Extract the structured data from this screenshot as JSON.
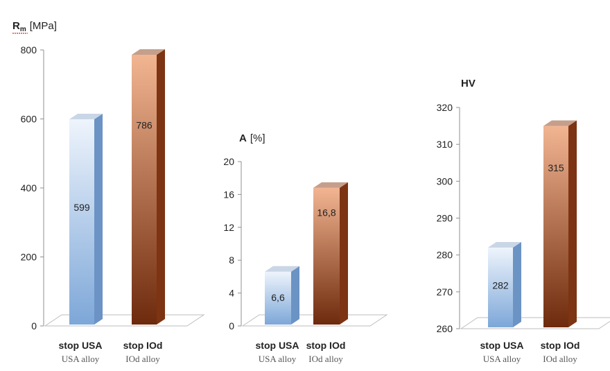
{
  "chart_data": [
    {
      "type": "bar",
      "title": "Rm",
      "title_sub": "m",
      "title_unit": "[MPa]",
      "categories": [
        "stop USA",
        "stop IOd"
      ],
      "subcategories": [
        "USA alloy",
        "IOd alloy"
      ],
      "values": [
        599,
        786
      ],
      "value_labels": [
        "599",
        "786"
      ],
      "ylim": [
        0,
        800
      ],
      "yticks": [
        0,
        200,
        400,
        600,
        800
      ],
      "grid": false,
      "legend": "none"
    },
    {
      "type": "bar",
      "title": "A",
      "title_sub": "",
      "title_unit": "[%]",
      "categories": [
        "stop USA",
        "stop IOd"
      ],
      "subcategories": [
        "USA alloy",
        "IOd alloy"
      ],
      "values": [
        6.6,
        16.8
      ],
      "value_labels": [
        "6,6",
        "16,8"
      ],
      "ylim": [
        0,
        20
      ],
      "yticks": [
        0,
        4,
        8,
        12,
        16,
        20
      ],
      "grid": false,
      "legend": "none"
    },
    {
      "type": "bar",
      "title": "HV",
      "title_sub": "",
      "title_unit": "",
      "categories": [
        "stop USA",
        "stop IOd"
      ],
      "subcategories": [
        "USA alloy",
        "IOd alloy"
      ],
      "values": [
        282,
        315
      ],
      "value_labels": [
        "282",
        "315"
      ],
      "ylim": [
        260,
        320
      ],
      "yticks": [
        260,
        270,
        280,
        290,
        300,
        310,
        320
      ],
      "grid": false,
      "legend": "none"
    }
  ],
  "colors": {
    "usa_light": "#eef4fc",
    "usa_dark": "#7da7d8",
    "iod_light": "#f2b592",
    "iod_dark": "#6e2a0c",
    "axis": "#8f8f8f",
    "title_underline": "#e04848"
  }
}
